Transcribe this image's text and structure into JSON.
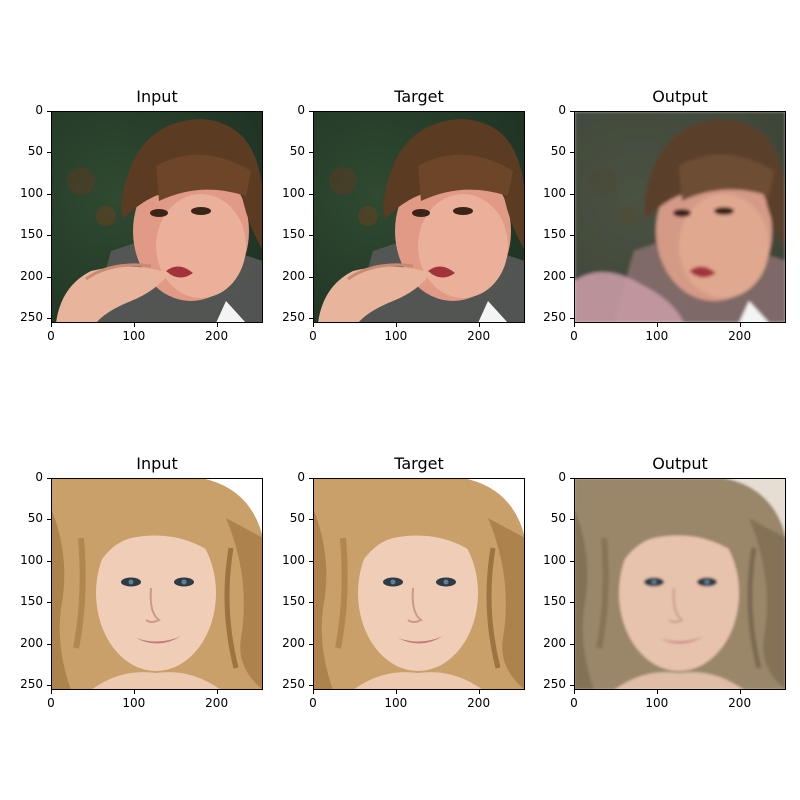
{
  "figure": {
    "rows": [
      {
        "panels": [
          {
            "title": "Input",
            "image": "photo of a woman with short brown hair with bangs, biting her finger, dark green background"
          },
          {
            "title": "Target",
            "image": "photo of a woman with short brown hair with bangs, biting her finger, dark green background"
          },
          {
            "title": "Output",
            "image": "blurred reconstruction of the brown-haired woman, muted pinkish foreground"
          }
        ]
      },
      {
        "panels": [
          {
            "title": "Input",
            "image": "photo of a smiling woman with long wavy blonde hair, white background"
          },
          {
            "title": "Target",
            "image": "photo of a smiling woman with long wavy blonde hair, white background"
          },
          {
            "title": "Output",
            "image": "blurred reconstruction of the blonde woman with darker ash-brown hair"
          }
        ]
      }
    ],
    "axes": {
      "yticks": [
        "0",
        "50",
        "100",
        "150",
        "200",
        "250"
      ],
      "xticks": [
        "0",
        "100",
        "200"
      ]
    }
  }
}
